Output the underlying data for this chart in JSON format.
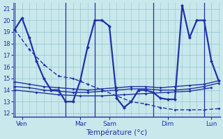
{
  "background_color": "#c8e8ec",
  "grid_color": "#96c4cc",
  "line_color": "#2030a8",
  "xlabel": "Température (°c)",
  "ylim": [
    11.7,
    21.5
  ],
  "yticks": [
    12,
    13,
    14,
    15,
    16,
    17,
    18,
    19,
    20,
    21
  ],
  "xlim": [
    -0.2,
    28.2
  ],
  "day_labels": [
    "Ven",
    "Mar",
    "Sam",
    "Dim",
    "Lun"
  ],
  "day_tick_positions": [
    1,
    9,
    13,
    21,
    27
  ],
  "series": [
    {
      "x": [
        0,
        1,
        2,
        3,
        4,
        5,
        6,
        7,
        8,
        9,
        10,
        11,
        12,
        13,
        14,
        15,
        16,
        17,
        18,
        19,
        20,
        21,
        22,
        23,
        24,
        25,
        26,
        27,
        28
      ],
      "y": [
        19.2,
        20.2,
        18.5,
        16.5,
        15.0,
        14.0,
        14.0,
        13.0,
        13.0,
        14.8,
        17.7,
        20.0,
        20.0,
        19.5,
        13.3,
        12.5,
        13.0,
        14.0,
        14.0,
        13.8,
        13.3,
        13.2,
        13.2,
        21.3,
        18.5,
        20.0,
        20.0,
        16.5,
        14.8
      ],
      "lw": 1.6,
      "marker_size": 2.5,
      "dashes": []
    },
    {
      "x": [
        0,
        2,
        4,
        6,
        8,
        10,
        12,
        14,
        16,
        18,
        20,
        22,
        24,
        26,
        28
      ],
      "y": [
        19.2,
        17.5,
        16.2,
        15.2,
        15.0,
        14.5,
        14.0,
        13.5,
        13.0,
        12.8,
        12.5,
        12.3,
        12.3,
        12.3,
        12.4
      ],
      "lw": 1.0,
      "marker_size": 2.0,
      "dashes": [
        4,
        2
      ]
    },
    {
      "x": [
        0,
        2,
        4,
        6,
        8,
        10,
        12,
        14,
        16,
        18,
        20,
        22,
        24,
        26,
        28
      ],
      "y": [
        14.7,
        14.5,
        14.3,
        14.2,
        14.1,
        14.0,
        14.1,
        14.2,
        14.3,
        14.3,
        14.2,
        14.3,
        14.4,
        14.5,
        14.8
      ],
      "lw": 1.0,
      "marker_size": 2.0,
      "dashes": []
    },
    {
      "x": [
        0,
        2,
        4,
        6,
        8,
        10,
        12,
        14,
        16,
        18,
        20,
        22,
        24,
        26,
        28
      ],
      "y": [
        14.3,
        14.2,
        14.0,
        13.9,
        13.8,
        13.8,
        13.9,
        14.0,
        14.1,
        14.1,
        14.0,
        14.0,
        14.1,
        14.3,
        14.6
      ],
      "lw": 1.0,
      "marker_size": 2.0,
      "dashes": []
    },
    {
      "x": [
        0,
        3,
        6,
        9,
        12,
        15,
        18,
        21,
        24,
        27
      ],
      "y": [
        14.0,
        13.8,
        13.6,
        13.5,
        13.5,
        13.6,
        13.7,
        13.8,
        13.9,
        14.2
      ],
      "lw": 1.0,
      "marker_size": 2.0,
      "dashes": []
    }
  ],
  "vlines": [
    0,
    7,
    11,
    19,
    26
  ]
}
